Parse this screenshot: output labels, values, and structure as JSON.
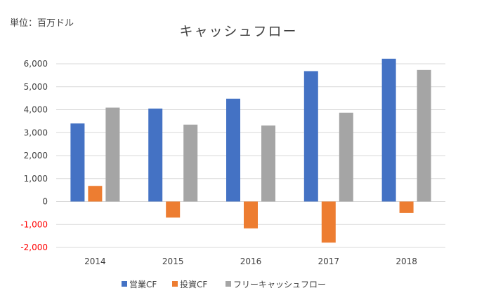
{
  "chart_data": {
    "type": "bar",
    "title": "キャッシュフロー",
    "unit_label": "単位：百万ドル",
    "categories": [
      "2014",
      "2015",
      "2016",
      "2017",
      "2018"
    ],
    "series": [
      {
        "name": "営業CF",
        "color": "#4472C4",
        "values": [
          3400,
          4050,
          4480,
          5680,
          6220
        ]
      },
      {
        "name": "投資CF",
        "color": "#ED7D31",
        "values": [
          680,
          -700,
          -1170,
          -1790,
          -500
        ]
      },
      {
        "name": "フリーキャッシュフロー",
        "color": "#A5A5A5",
        "values": [
          4090,
          3350,
          3310,
          3870,
          5730
        ]
      }
    ],
    "ylim": [
      -2000,
      6000
    ],
    "yticks": [
      6000,
      5000,
      4000,
      3000,
      2000,
      1000,
      0,
      -1000,
      -2000
    ],
    "ytick_labels": [
      "6,000",
      "5,000",
      "4,000",
      "3,000",
      "2,000",
      "1,000",
      "0",
      "-1,000",
      "-2,000"
    ],
    "negative_tick_color": "#FF0000",
    "grid": true,
    "legend_position": "bottom"
  }
}
